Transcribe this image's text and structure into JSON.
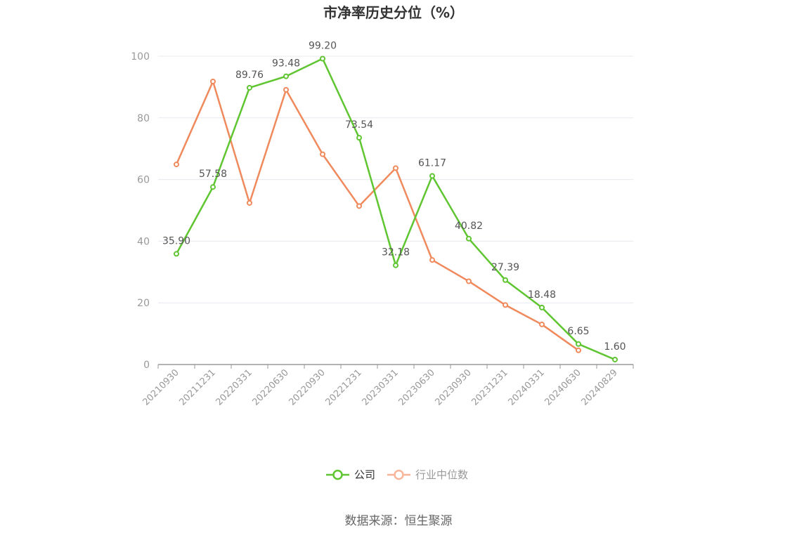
{
  "chart_data": {
    "type": "line",
    "title": "市净率历史分位（%）",
    "x": [
      "20210930",
      "20211231",
      "20220331",
      "20220630",
      "20220930",
      "20221231",
      "20230331",
      "20230630",
      "20230930",
      "20231231",
      "20240331",
      "20240630",
      "20240829"
    ],
    "series": [
      {
        "name": "公司",
        "color": "#5fc531",
        "values": [
          35.9,
          57.58,
          89.76,
          93.48,
          99.2,
          73.54,
          32.18,
          61.17,
          40.82,
          27.39,
          18.48,
          6.65,
          1.6
        ],
        "labels": [
          "35.90",
          "57.58",
          "89.76",
          "93.48",
          "99.20",
          "73.54",
          "32.18",
          "61.17",
          "40.82",
          "27.39",
          "18.48",
          "6.65",
          "1.60"
        ]
      },
      {
        "name": "行业中位数",
        "color": "#f08a5d",
        "values": [
          64.9,
          91.8,
          52.4,
          89.1,
          68.2,
          51.4,
          63.7,
          33.9,
          27.0,
          19.3,
          13.0,
          4.6,
          null
        ]
      }
    ],
    "ylim": [
      0,
      100
    ],
    "yticks": [
      "0",
      "20",
      "40",
      "60",
      "80",
      "100"
    ],
    "grid": true,
    "legend_position": "bottom"
  },
  "source": "数据来源：恒生聚源"
}
